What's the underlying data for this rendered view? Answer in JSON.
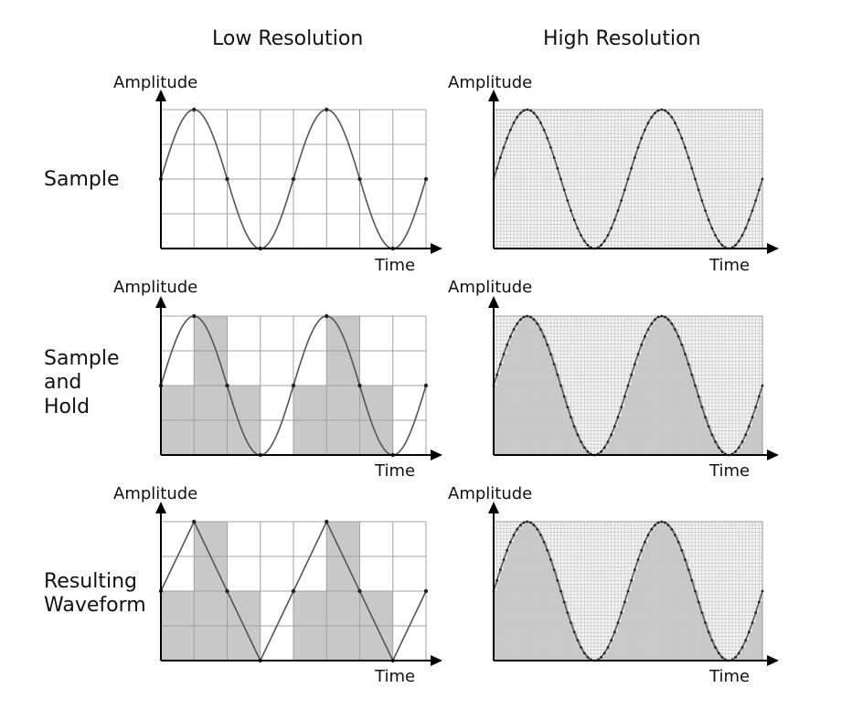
{
  "columns": [
    "Low Resolution",
    "High Resolution"
  ],
  "rows": [
    {
      "label_lines": [
        "Sample"
      ],
      "mode": "sample"
    },
    {
      "label_lines": [
        "Sample",
        "and",
        "Hold"
      ],
      "mode": "hold"
    },
    {
      "label_lines": [
        "Resulting",
        "Waveform"
      ],
      "mode": "result"
    }
  ],
  "axis": {
    "y_label": "Amplitude",
    "x_label": "Time"
  },
  "waveform": {
    "function": "sine",
    "cycles_shown": 2,
    "low_resolution_samples_per_cycle": 4,
    "high_resolution_samples_per_cycle": 40,
    "amplitude_levels_low": 4,
    "amplitude_levels_high": 40
  },
  "colors": {
    "curve": "#555555",
    "fill": "#c8c8c8",
    "grid": "#a0a0a0",
    "fine_grid": "#c9c9c9",
    "axis": "#000000"
  }
}
